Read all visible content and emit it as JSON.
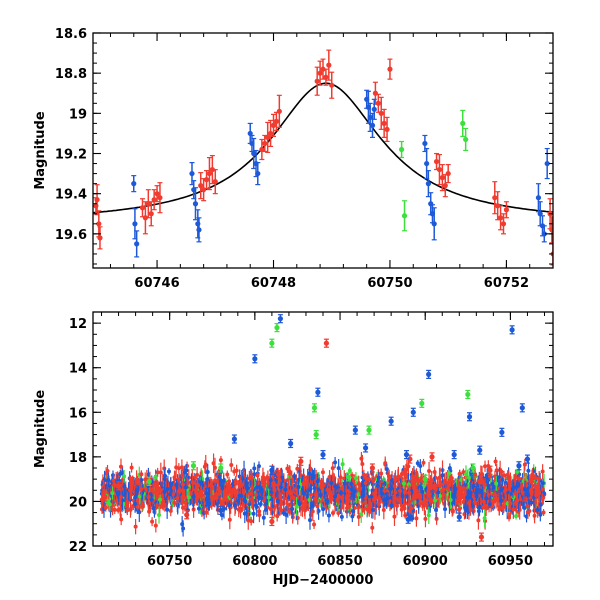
{
  "chart_data": [
    {
      "type": "scatter",
      "panel": "top",
      "title": "",
      "xlabel": "",
      "ylabel": "Magnitude",
      "xlim": [
        60744.9,
        60752.8
      ],
      "ylim": [
        19.77,
        18.6
      ],
      "y_inverted": true,
      "xticks": [
        60746,
        60748,
        60750,
        60752
      ],
      "yticks": [
        18.6,
        18.8,
        19.0,
        19.2,
        19.4,
        19.6
      ],
      "ytick_labels": [
        "18.6",
        "18.8",
        "19",
        "19.2",
        "19.4",
        "19.6"
      ],
      "model_curve": {
        "name": "fit",
        "color": "#000000",
        "baseline": 19.55,
        "peak": 18.85,
        "t0": 60748.9,
        "width": 1.7
      },
      "series": [
        {
          "name": "red",
          "color": "#f03c30",
          "points": [
            [
              60744.95,
              19.46
            ],
            [
              60744.97,
              19.43
            ],
            [
              60745.0,
              19.55
            ],
            [
              60745.02,
              19.62
            ],
            [
              60745.75,
              19.47
            ],
            [
              60745.8,
              19.52
            ],
            [
              60745.85,
              19.45
            ],
            [
              60745.9,
              19.5
            ],
            [
              60745.95,
              19.43
            ],
            [
              60746.0,
              19.4
            ],
            [
              60746.05,
              19.42
            ],
            [
              60746.75,
              19.36
            ],
            [
              60746.8,
              19.38
            ],
            [
              60746.85,
              19.33
            ],
            [
              60746.9,
              19.3
            ],
            [
              60746.95,
              19.28
            ],
            [
              60747.0,
              19.34
            ],
            [
              60747.8,
              19.18
            ],
            [
              60747.85,
              19.15
            ],
            [
              60747.9,
              19.12
            ],
            [
              60747.95,
              19.1
            ],
            [
              60748.0,
              19.06
            ],
            [
              60748.05,
              19.04
            ],
            [
              60748.1,
              18.99
            ],
            [
              60748.75,
              18.84
            ],
            [
              60748.8,
              18.8
            ],
            [
              60748.85,
              18.78
            ],
            [
              60748.9,
              18.82
            ],
            [
              60748.95,
              18.76
            ],
            [
              60749.0,
              18.86
            ],
            [
              60749.75,
              18.9
            ],
            [
              60749.8,
              18.95
            ],
            [
              60749.85,
              19.0
            ],
            [
              60749.9,
              19.05
            ],
            [
              60749.95,
              19.08
            ],
            [
              60750.0,
              18.78
            ],
            [
              60750.8,
              19.24
            ],
            [
              60750.85,
              19.28
            ],
            [
              60750.9,
              19.32
            ],
            [
              60750.95,
              19.36
            ],
            [
              60751.0,
              19.3
            ],
            [
              60751.8,
              19.42
            ],
            [
              60751.85,
              19.46
            ],
            [
              60751.9,
              19.52
            ],
            [
              60751.95,
              19.55
            ],
            [
              60752.0,
              19.48
            ],
            [
              60752.75,
              19.5
            ],
            [
              60752.78,
              19.58
            ],
            [
              60752.8,
              19.7
            ]
          ]
        },
        {
          "name": "blue",
          "color": "#1e5ad8",
          "points": [
            [
              60745.6,
              19.35
            ],
            [
              60745.62,
              19.55
            ],
            [
              60745.65,
              19.65
            ],
            [
              60746.6,
              19.3
            ],
            [
              60746.63,
              19.38
            ],
            [
              60746.66,
              19.45
            ],
            [
              60746.7,
              19.55
            ],
            [
              60746.72,
              19.58
            ],
            [
              60747.6,
              19.1
            ],
            [
              60747.63,
              19.15
            ],
            [
              60747.66,
              19.2
            ],
            [
              60747.7,
              19.25
            ],
            [
              60747.73,
              19.3
            ],
            [
              60749.6,
              18.93
            ],
            [
              60749.63,
              18.97
            ],
            [
              60749.66,
              19.02
            ],
            [
              60749.7,
              19.06
            ],
            [
              60749.73,
              18.98
            ],
            [
              60750.6,
              19.15
            ],
            [
              60750.63,
              19.25
            ],
            [
              60750.66,
              19.35
            ],
            [
              60750.7,
              19.45
            ],
            [
              60750.73,
              19.5
            ],
            [
              60750.76,
              19.55
            ],
            [
              60752.55,
              19.42
            ],
            [
              60752.58,
              19.5
            ],
            [
              60752.62,
              19.56
            ],
            [
              60752.65,
              19.6
            ],
            [
              60752.7,
              19.25
            ]
          ]
        },
        {
          "name": "green",
          "color": "#3ce03c",
          "points": [
            [
              60750.2,
              19.18
            ],
            [
              60750.25,
              19.51
            ],
            [
              60751.25,
              19.05
            ],
            [
              60751.3,
              19.13
            ]
          ]
        }
      ]
    },
    {
      "type": "scatter",
      "panel": "bottom",
      "title": "",
      "xlabel": "HJD−2400000",
      "ylabel": "Magnitude",
      "xlim": [
        60705,
        60975
      ],
      "ylim": [
        22,
        11.5
      ],
      "y_inverted": true,
      "xticks": [
        60750,
        60800,
        60850,
        60900,
        60950
      ],
      "yticks": [
        12,
        14,
        16,
        18,
        20,
        22
      ],
      "ytick_labels": [
        "12",
        "14",
        "16",
        "18",
        "20",
        "22"
      ],
      "band_description": "dense scatter of red, blue and green points around magnitude 19.6 from 60710 to 60970",
      "band_center": 19.6,
      "band_spread": 0.45,
      "band_xrange": [
        60710,
        60970
      ],
      "series": [
        {
          "name": "red",
          "color": "#f03c30",
          "points": [
            [
              60814,
              18.8
            ],
            [
              60842,
              12.9
            ],
            [
              60827,
              18.2
            ],
            [
              60869,
              18.5
            ],
            [
              60891,
              18.1
            ],
            [
              60938,
              18.6
            ],
            [
              60933,
              21.6
            ],
            [
              60810,
              20.9
            ],
            [
              60904,
              18.0
            ],
            [
              60760,
              20.6
            ],
            [
              60720,
              19.3
            ],
            [
              60712,
              19.8
            ]
          ]
        },
        {
          "name": "blue",
          "color": "#1e5ad8",
          "points": [
            [
              60815,
              11.8
            ],
            [
              60951,
              12.3
            ],
            [
              60800,
              13.6
            ],
            [
              60902,
              14.3
            ],
            [
              60837,
              15.1
            ],
            [
              60957,
              15.8
            ],
            [
              60859,
              16.8
            ],
            [
              60880,
              16.4
            ],
            [
              60893,
              16.0
            ],
            [
              60926,
              16.2
            ],
            [
              60945,
              16.9
            ],
            [
              60788,
              17.2
            ],
            [
              60821,
              17.4
            ],
            [
              60865,
              17.6
            ],
            [
              60889,
              17.9
            ],
            [
              60917,
              17.9
            ],
            [
              60932,
              17.7
            ],
            [
              60960,
              18.1
            ],
            [
              60840,
              17.9
            ],
            [
              60810,
              18.6
            ],
            [
              60890,
              20.8
            ],
            [
              60920,
              20.7
            ],
            [
              60780,
              20.4
            ],
            [
              60955,
              18.4
            ]
          ]
        },
        {
          "name": "green",
          "color": "#3ce03c",
          "points": [
            [
              60810,
              12.9
            ],
            [
              60813,
              12.2
            ],
            [
              60835,
              15.8
            ],
            [
              60836,
              17.0
            ],
            [
              60867,
              16.8
            ],
            [
              60898,
              15.6
            ],
            [
              60925,
              15.2
            ],
            [
              60928,
              18.5
            ],
            [
              60780,
              18.5
            ],
            [
              60764,
              18.4
            ],
            [
              60738,
              19.1
            ],
            [
              60855,
              18.9
            ],
            [
              60900,
              19.0
            ]
          ]
        }
      ]
    }
  ]
}
